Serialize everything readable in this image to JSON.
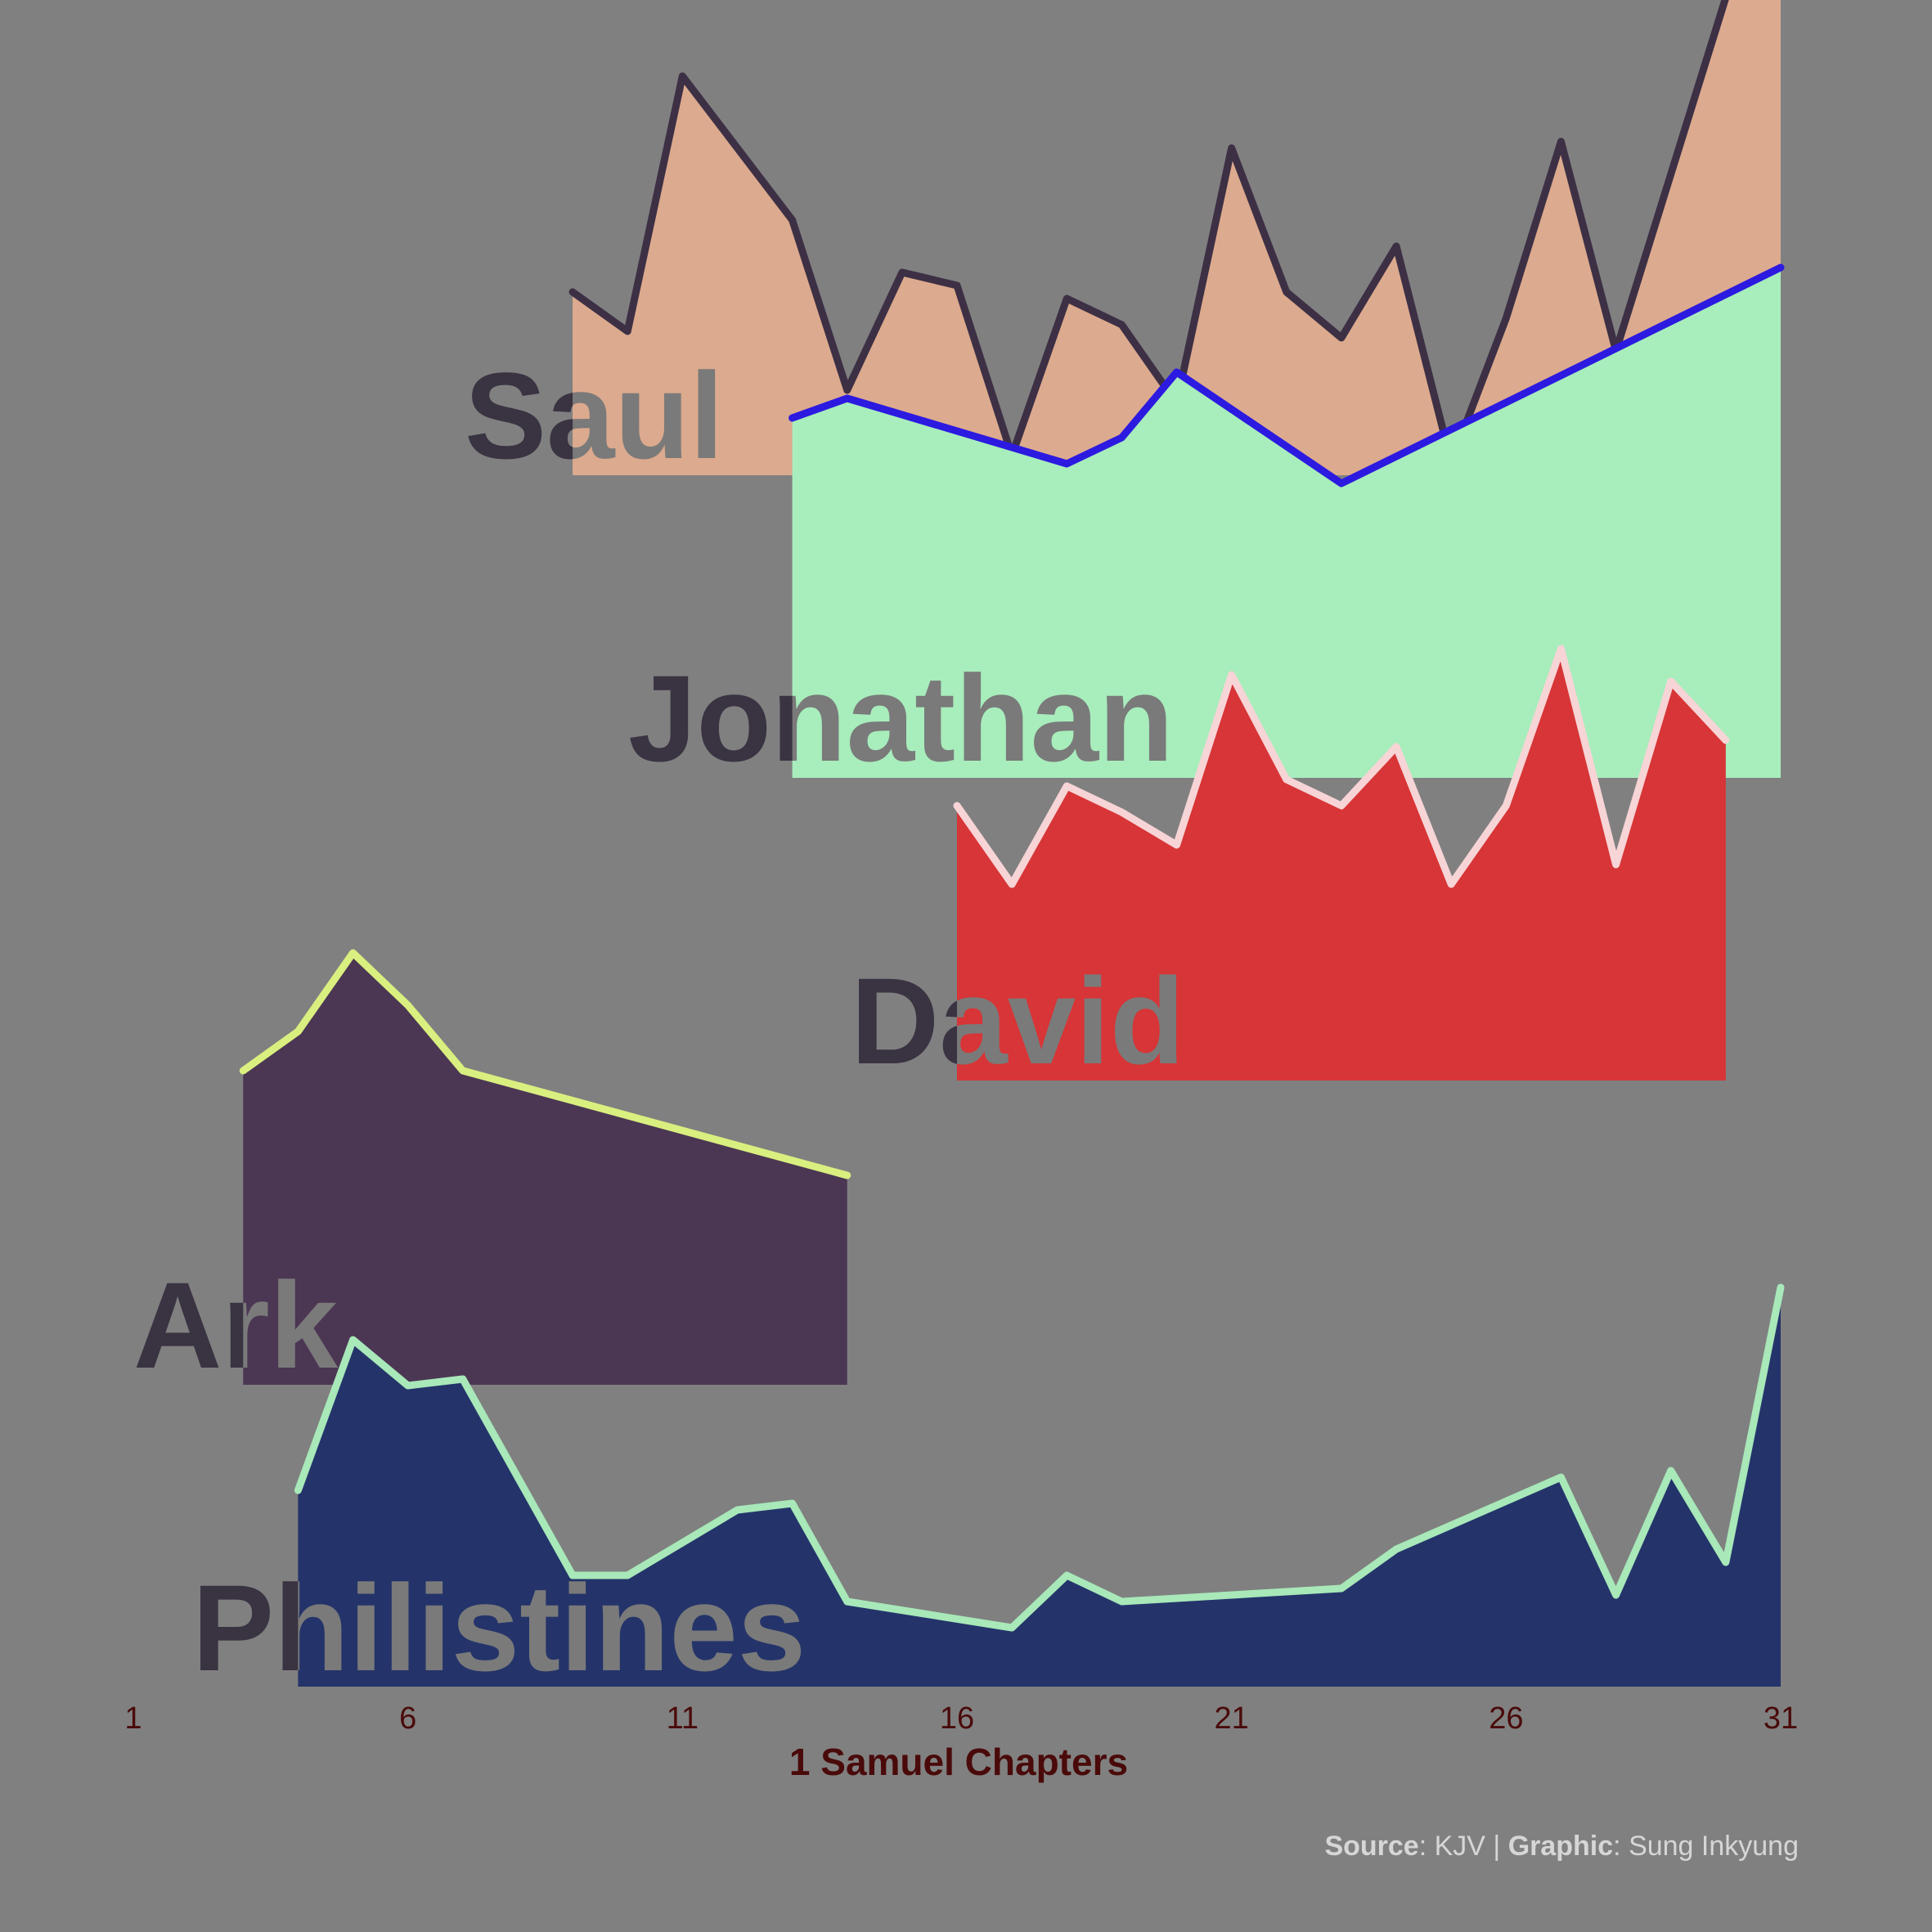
{
  "chart_data": {
    "type": "area",
    "xlabel": "1 Samuel Chapters",
    "xlim": [
      1,
      31
    ],
    "x_ticks": [
      1,
      6,
      11,
      16,
      21,
      26,
      31
    ],
    "series": [
      {
        "name": "Saul",
        "fill": "#dcaa8e",
        "line": "#3d3045",
        "points": [
          [
            9,
            0.28
          ],
          [
            10,
            0.22
          ],
          [
            11,
            0.61
          ],
          [
            13,
            0.39
          ],
          [
            14,
            0.13
          ],
          [
            15,
            0.31
          ],
          [
            16,
            0.29
          ],
          [
            17,
            0.03
          ],
          [
            18,
            0.27
          ],
          [
            19,
            0.23
          ],
          [
            20,
            0.11
          ],
          [
            21,
            0.5
          ],
          [
            22,
            0.28
          ],
          [
            23,
            0.21
          ],
          [
            24,
            0.35
          ],
          [
            25,
            0.02
          ],
          [
            26,
            0.24
          ],
          [
            27,
            0.51
          ],
          [
            28,
            0.19
          ],
          [
            31,
            1.0
          ]
        ]
      },
      {
        "name": "Jonathan",
        "fill": "#a8edbc",
        "line": "#2c1ae0",
        "points": [
          [
            13,
            0.55
          ],
          [
            14,
            0.58
          ],
          [
            18,
            0.48
          ],
          [
            19,
            0.52
          ],
          [
            20,
            0.62
          ],
          [
            23,
            0.45
          ],
          [
            31,
            0.78
          ]
        ]
      },
      {
        "name": "David",
        "fill": "#d73537",
        "line": "#f7d4d6",
        "points": [
          [
            16,
            0.42
          ],
          [
            17,
            0.3
          ],
          [
            18,
            0.45
          ],
          [
            19,
            0.41
          ],
          [
            20,
            0.36
          ],
          [
            21,
            0.62
          ],
          [
            22,
            0.46
          ],
          [
            23,
            0.42
          ],
          [
            24,
            0.51
          ],
          [
            25,
            0.3
          ],
          [
            26,
            0.42
          ],
          [
            27,
            0.66
          ],
          [
            28,
            0.33
          ],
          [
            29,
            0.61
          ],
          [
            30,
            0.52
          ]
        ]
      },
      {
        "name": "Ark",
        "fill": "#4b3653",
        "line": "#d9ef7f",
        "points": [
          [
            3,
            0.48
          ],
          [
            4,
            0.54
          ],
          [
            5,
            0.66
          ],
          [
            6,
            0.58
          ],
          [
            7,
            0.48
          ],
          [
            14,
            0.32
          ]
        ]
      },
      {
        "name": "Philistines",
        "fill": "#24346a",
        "line": "#a8e8b9",
        "points": [
          [
            4,
            0.3
          ],
          [
            5,
            0.53
          ],
          [
            6,
            0.46
          ],
          [
            7,
            0.47
          ],
          [
            9,
            0.17
          ],
          [
            10,
            0.17
          ],
          [
            12,
            0.27
          ],
          [
            13,
            0.28
          ],
          [
            14,
            0.13
          ],
          [
            17,
            0.09
          ],
          [
            18,
            0.17
          ],
          [
            19,
            0.13
          ],
          [
            23,
            0.15
          ],
          [
            24,
            0.21
          ],
          [
            27,
            0.32
          ],
          [
            28,
            0.14
          ],
          [
            29,
            0.33
          ],
          [
            30,
            0.19
          ],
          [
            31,
            0.61
          ]
        ]
      }
    ]
  },
  "caption": {
    "source_label": "Source",
    "source_value": ": KJV | ",
    "graphic_label": "Graphic",
    "graphic_value": ": Sung Inkyung"
  },
  "colors": {
    "background": "#808080",
    "label_dark": "#3a3342",
    "label_light": "#7a7a7a",
    "axis_text": "#4a0a0a",
    "caption_text": "#d6d6d6"
  }
}
